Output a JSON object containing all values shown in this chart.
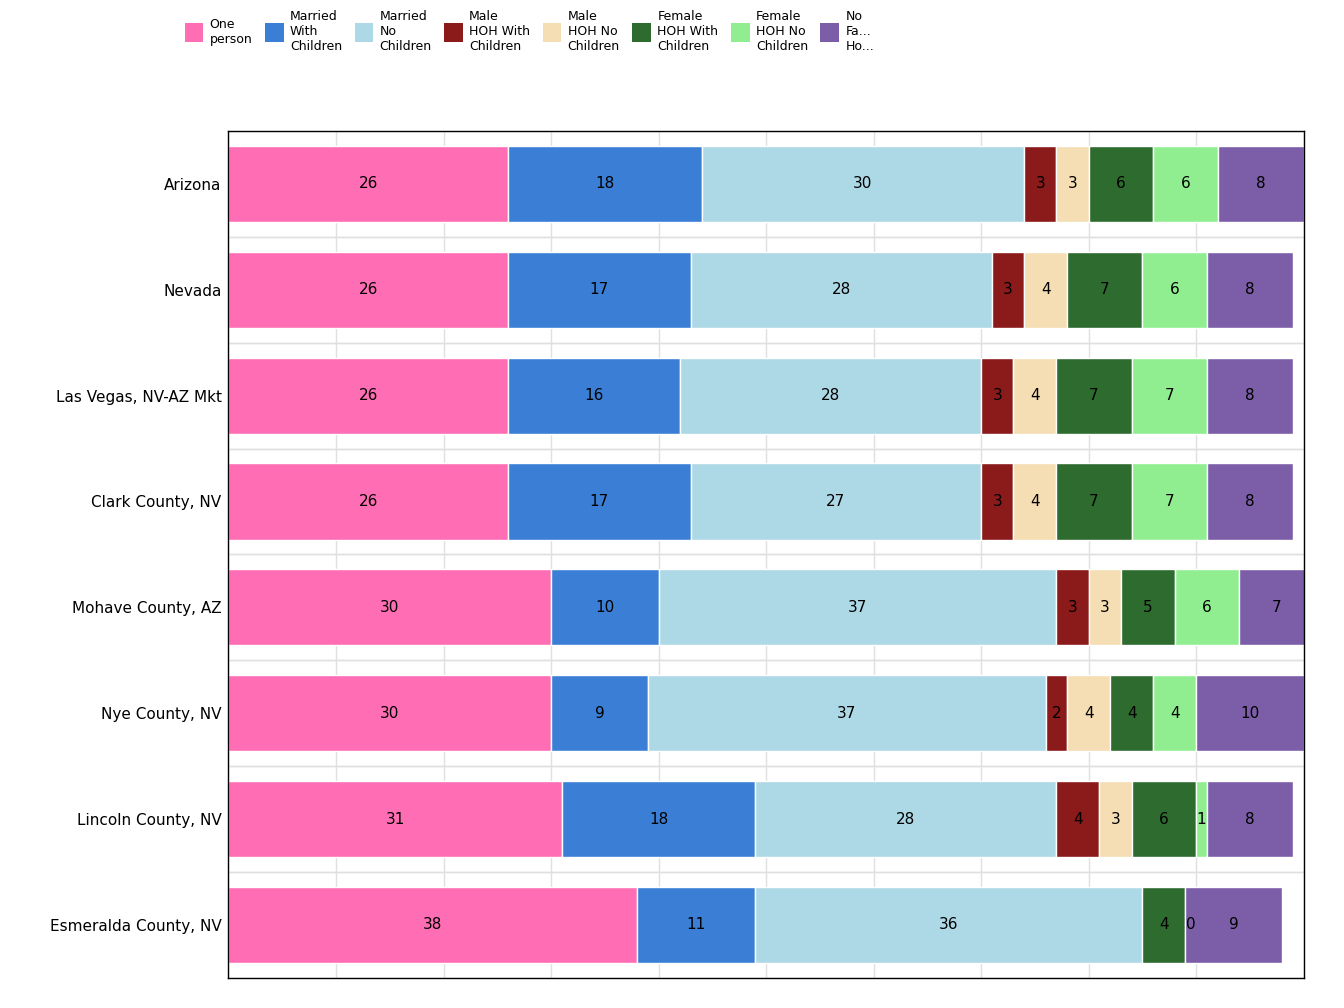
{
  "categories": [
    "Arizona",
    "Nevada",
    "Las Vegas, NV-AZ Mkt",
    "Clark County, NV",
    "Mohave County, AZ",
    "Nye County, NV",
    "Lincoln County, NV",
    "Esmeralda County, NV"
  ],
  "segments": [
    "One\nperson",
    "Married\nWith\nChildren",
    "Married\nNo\nChildren",
    "Male\nHOH With\nChildren",
    "Male\nHOH No\nChildren",
    "Female\nHOH With\nChildren",
    "Female\nHOH No\nChildren",
    "No\nFa...\nHo..."
  ],
  "colors": [
    "#FF6EB4",
    "#3A7FD5",
    "#ADD8E6",
    "#8B1A1A",
    "#F5DEB3",
    "#2E6B2E",
    "#90EE90",
    "#7B5EA7"
  ],
  "values": [
    [
      26,
      18,
      30,
      3,
      3,
      6,
      6,
      8
    ],
    [
      26,
      17,
      28,
      3,
      4,
      7,
      6,
      8
    ],
    [
      26,
      16,
      28,
      3,
      4,
      7,
      7,
      8
    ],
    [
      26,
      17,
      27,
      3,
      4,
      7,
      7,
      8
    ],
    [
      30,
      10,
      37,
      3,
      3,
      5,
      6,
      7
    ],
    [
      30,
      9,
      37,
      2,
      4,
      4,
      4,
      10
    ],
    [
      31,
      18,
      28,
      4,
      3,
      6,
      1,
      8
    ],
    [
      38,
      11,
      36,
      0,
      0,
      4,
      0,
      9
    ]
  ],
  "figsize": [
    13.44,
    10.08
  ],
  "dpi": 100,
  "bar_height": 0.72,
  "xlim": [
    0,
    100
  ],
  "plot_bg": "#FFFFFF",
  "fig_bg": "#FFFFFF",
  "grid_color": "#E0E0E0",
  "ylabel_fontsize": 11,
  "value_fontsize": 11,
  "legend_fontsize": 9,
  "legend_handle_size": 1.5
}
